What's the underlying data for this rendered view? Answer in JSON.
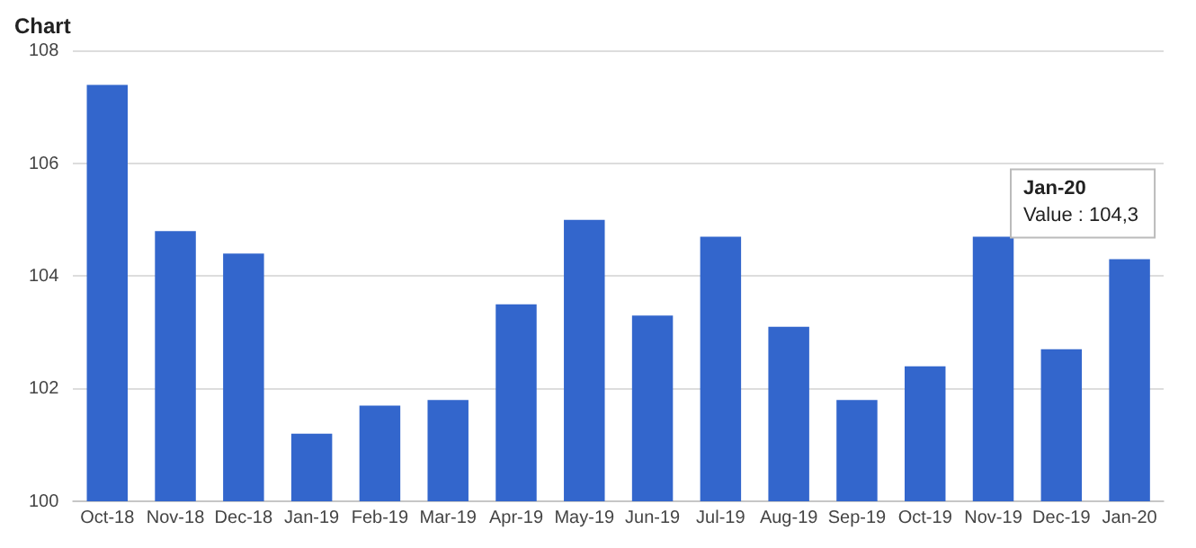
{
  "chart_data": {
    "type": "bar",
    "title": "Chart",
    "categories": [
      "Oct-18",
      "Nov-18",
      "Dec-18",
      "Jan-19",
      "Feb-19",
      "Mar-19",
      "Apr-19",
      "May-19",
      "Jun-19",
      "Jul-19",
      "Aug-19",
      "Sep-19",
      "Oct-19",
      "Nov-19",
      "Dec-19",
      "Jan-20"
    ],
    "values": [
      107.4,
      104.8,
      104.4,
      101.2,
      101.7,
      101.8,
      103.5,
      105.0,
      103.3,
      104.7,
      103.1,
      101.8,
      102.4,
      104.7,
      102.7,
      104.3
    ],
    "color": "#3366cc",
    "ylim": [
      100,
      108
    ],
    "yticks": [
      100,
      102,
      104,
      106,
      108
    ],
    "grid": "y",
    "annotations": [
      {
        "text": "Jan-20\nValue : 104,3",
        "x": "Jan-20",
        "y": 104.3
      }
    ]
  }
}
